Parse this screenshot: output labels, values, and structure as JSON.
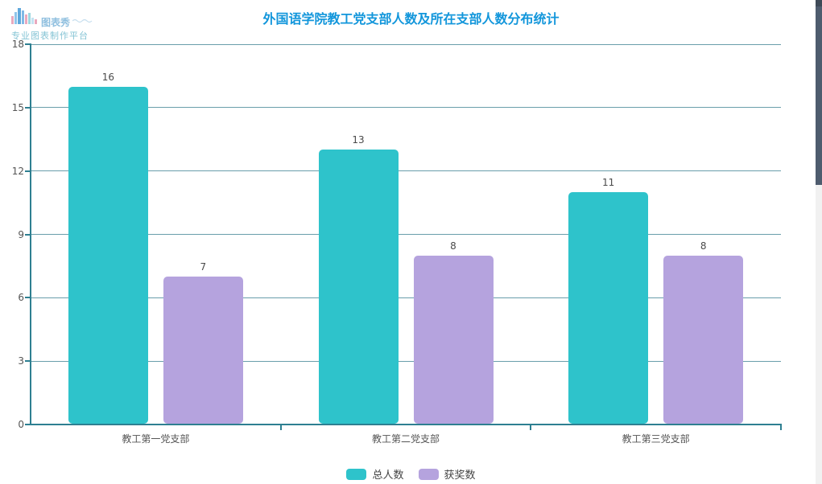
{
  "logo": {
    "name": "图表秀",
    "tagline": "专业图表制作平台"
  },
  "title": "外国语学院教工党支部人数及所在支部人数分布统计",
  "chart_data": {
    "type": "bar",
    "title": "外国语学院教工党支部人数及所在支部人数分布统计",
    "categories": [
      "教工第一党支部",
      "教工第二党支部",
      "教工第三党支部"
    ],
    "series": [
      {
        "name": "总人数",
        "color": "#2ec3cb",
        "values": [
          16,
          13,
          11
        ]
      },
      {
        "name": "获奖数",
        "color": "#b5a3de",
        "values": [
          7,
          8,
          8
        ]
      }
    ],
    "ylim": [
      0,
      18
    ],
    "yticks": [
      0,
      3,
      6,
      9,
      12,
      15,
      18
    ],
    "grid": true,
    "value_labels": true,
    "legend_position": "bottom"
  },
  "colors": {
    "title": "#1296db",
    "axis": "#2e7f91",
    "gridline": "#699eab",
    "bar_total": "#2ec3cb",
    "bar_award": "#b5a3de"
  }
}
